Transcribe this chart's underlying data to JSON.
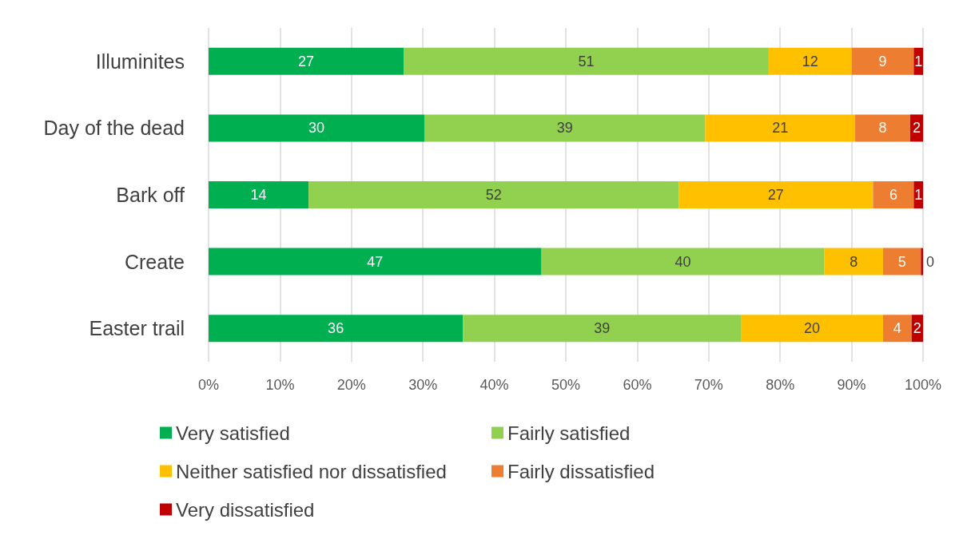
{
  "chart_data": {
    "type": "bar",
    "orientation": "horizontal",
    "stacked": true,
    "categories": [
      "Illuminites",
      "Day of the dead",
      "Bark off",
      "Create",
      "Easter trail"
    ],
    "series": [
      {
        "name": "Very satisfied",
        "color": "#00b050",
        "values": [
          27.3,
          30.2,
          14.0,
          46.6,
          35.6
        ],
        "value_labels": [
          "27",
          "30",
          "14",
          "47",
          "36"
        ]
      },
      {
        "name": "Fairly satisfied",
        "color": "#92d050",
        "values": [
          51.1,
          39.3,
          51.8,
          39.6,
          38.9
        ],
        "value_labels": [
          "51",
          "39",
          "52",
          "40",
          "39"
        ]
      },
      {
        "name": "Neither satisfied nor dissatisfied",
        "color": "#ffc000",
        "values": [
          11.6,
          21.0,
          27.2,
          8.2,
          19.9
        ],
        "value_labels": [
          "12",
          "21",
          "27",
          "8",
          "20"
        ]
      },
      {
        "name": "Fairly dissatisfied",
        "color": "#ed7d31",
        "values": [
          8.7,
          7.7,
          5.7,
          5.3,
          4.0
        ],
        "value_labels": [
          "9",
          "8",
          "6",
          "5",
          "4"
        ]
      },
      {
        "name": "Very dissatisfied",
        "color": "#c00000",
        "values": [
          1.3,
          1.8,
          1.3,
          0.3,
          1.6
        ],
        "value_labels": [
          "1",
          "2",
          "1",
          "0",
          "2"
        ]
      }
    ],
    "xlim": [
      0,
      100
    ],
    "xticks": [
      {
        "value": 0,
        "label": "0%"
      },
      {
        "value": 10,
        "label": "10%"
      },
      {
        "value": 20,
        "label": "20%"
      },
      {
        "value": 30,
        "label": "30%"
      },
      {
        "value": 40,
        "label": "40%"
      },
      {
        "value": 50,
        "label": "50%"
      },
      {
        "value": 60,
        "label": "60%"
      },
      {
        "value": 70,
        "label": "70%"
      },
      {
        "value": 80,
        "label": "80%"
      },
      {
        "value": 90,
        "label": "90%"
      },
      {
        "value": 100,
        "label": "100%"
      }
    ],
    "grid": "x",
    "legend": "bottom"
  }
}
